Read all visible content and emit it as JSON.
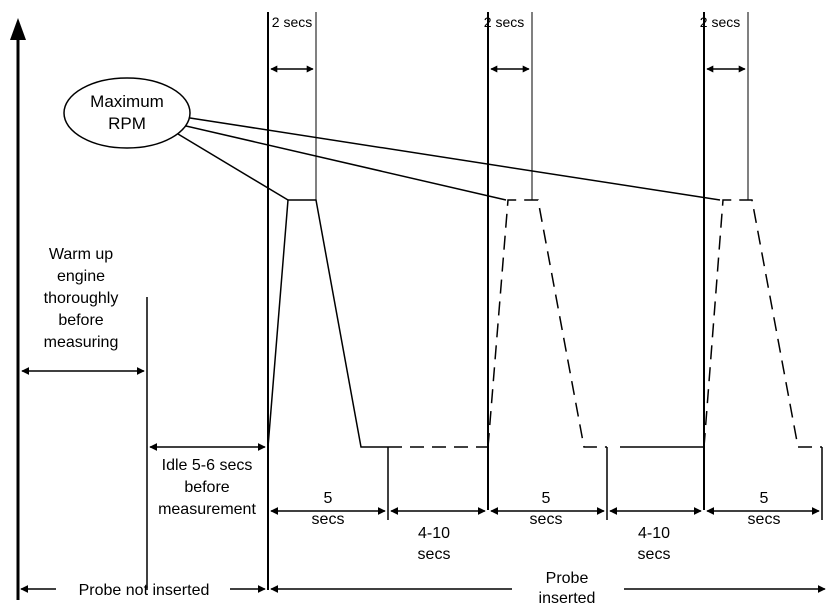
{
  "diagram": {
    "maximum_rpm": {
      "line1": "Maximum",
      "line2": "RPM"
    },
    "two_secs": [
      "2 secs",
      "2 secs",
      "2 secs"
    ],
    "warm_up": [
      "Warm up",
      "engine",
      "thoroughly",
      "before",
      "measuring"
    ],
    "idle": [
      "Idle 5-6 secs",
      "before",
      "measurement"
    ],
    "five_secs": [
      {
        "line1": "5",
        "line2": "secs"
      },
      {
        "line1": "5",
        "line2": "secs"
      },
      {
        "line1": "5",
        "line2": "secs"
      }
    ],
    "four_ten_secs": [
      {
        "line1": "4-10",
        "line2": "secs"
      },
      {
        "line1": "4-10",
        "line2": "secs"
      }
    ],
    "probe_not_inserted": "Probe not inserted",
    "probe_inserted": {
      "line1": "Probe",
      "line2": "inserted"
    }
  }
}
